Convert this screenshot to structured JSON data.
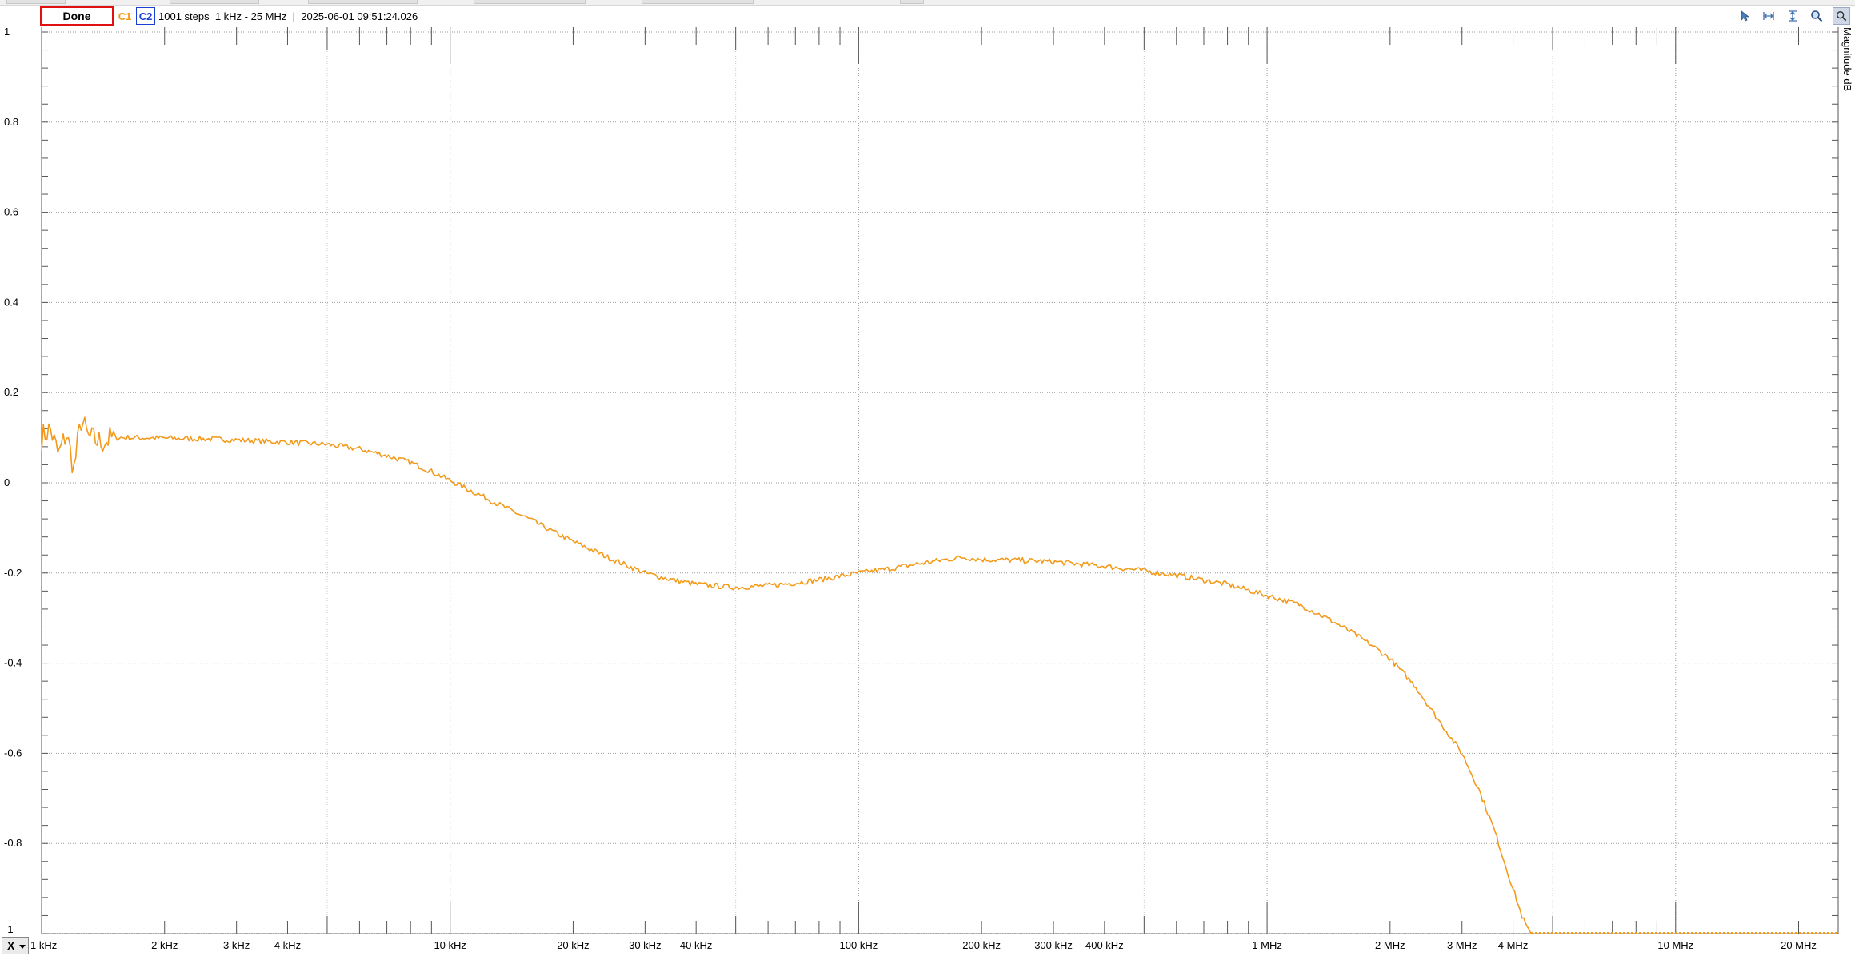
{
  "toolbar": {
    "status_label": "Done",
    "channel1_label": "C1",
    "channel2_label": "C2",
    "sweep_info": "1001 steps  1 kHz - 25 MHz  |  2025-06-01 09:51:24.026",
    "icons": [
      "cursor-icon",
      "fit-horizontal-icon",
      "fit-vertical-icon",
      "zoom-icon",
      "zoom-tool-icon"
    ]
  },
  "x_axis_selector": {
    "label": "X"
  },
  "colors": {
    "trace": "#f39a1b",
    "channel2": "#1a3fd6",
    "grid": "#9a9a9a",
    "status_border": "#e01010"
  },
  "chart_data": {
    "type": "line",
    "ylabel": "Magnitude  dB",
    "xscale": "log",
    "xlim": [
      1000,
      25000000
    ],
    "ylim": [
      -1,
      1
    ],
    "y_ticks": [
      1,
      0.8,
      0.6,
      0.4,
      0.2,
      0,
      -0.2,
      -0.4,
      -0.6,
      -0.8,
      -1
    ],
    "y_tick_labels": [
      "1",
      "0.8",
      "0.6",
      "0.4",
      "0.2",
      "0",
      "-0.2",
      "-0.4",
      "-0.6",
      "-0.8",
      "-1"
    ],
    "x_tick_labels": [
      {
        "value": 1000,
        "label": "1 kHz"
      },
      {
        "value": 2000,
        "label": "2 kHz"
      },
      {
        "value": 3000,
        "label": "3 kHz"
      },
      {
        "value": 4000,
        "label": "4 kHz"
      },
      {
        "value": 10000,
        "label": "10 kHz"
      },
      {
        "value": 20000,
        "label": "20 kHz"
      },
      {
        "value": 30000,
        "label": "30 kHz"
      },
      {
        "value": 40000,
        "label": "40 kHz"
      },
      {
        "value": 100000,
        "label": "100 kHz"
      },
      {
        "value": 200000,
        "label": "200 kHz"
      },
      {
        "value": 300000,
        "label": "300 kHz"
      },
      {
        "value": 400000,
        "label": "400 kHz"
      },
      {
        "value": 1000000,
        "label": "1 MHz"
      },
      {
        "value": 2000000,
        "label": "2 MHz"
      },
      {
        "value": 3000000,
        "label": "3 MHz"
      },
      {
        "value": 4000000,
        "label": "4 MHz"
      },
      {
        "value": 10000000,
        "label": "10 MHz"
      },
      {
        "value": 20000000,
        "label": "20 MHz"
      }
    ],
    "grid": true,
    "series": [
      {
        "color": "#f39a1b",
        "x": [
          1000,
          1050,
          1100,
          1150,
          1200,
          1250,
          1300,
          1400,
          1500,
          1700,
          2000,
          2300,
          2600,
          3000,
          3500,
          4000,
          5000,
          6000,
          7000,
          8000,
          9000,
          10000,
          12000,
          14000,
          16000,
          18000,
          20000,
          25000,
          30000,
          35000,
          40000,
          50000,
          60000,
          70000,
          80000,
          100000,
          120000,
          150000,
          180000,
          200000,
          250000,
          300000,
          400000,
          500000,
          600000,
          800000,
          1000000,
          1200000,
          1400000,
          1600000,
          1800000,
          2000000,
          2300000,
          2600000,
          3000000,
          3300000,
          3600000,
          3900000,
          4200000,
          4400000,
          4500000,
          5000000,
          7000000,
          10000000,
          15000000,
          20000000,
          25000000
        ],
        "y": [
          0.1,
          0.12,
          0.06,
          0.11,
          0.03,
          0.14,
          0.1,
          0.09,
          0.1,
          0.1,
          0.099,
          0.098,
          0.097,
          0.095,
          0.092,
          0.09,
          0.085,
          0.075,
          0.06,
          0.045,
          0.025,
          0.005,
          -0.03,
          -0.06,
          -0.085,
          -0.11,
          -0.13,
          -0.17,
          -0.2,
          -0.215,
          -0.225,
          -0.232,
          -0.228,
          -0.222,
          -0.215,
          -0.2,
          -0.19,
          -0.175,
          -0.165,
          -0.17,
          -0.172,
          -0.175,
          -0.185,
          -0.195,
          -0.205,
          -0.225,
          -0.25,
          -0.27,
          -0.3,
          -0.33,
          -0.36,
          -0.39,
          -0.45,
          -0.52,
          -0.6,
          -0.68,
          -0.77,
          -0.87,
          -0.96,
          -1.0,
          -1.0,
          -1.0,
          -1.0,
          -1.0,
          -1.0,
          -1.0,
          -1.0
        ]
      }
    ]
  }
}
